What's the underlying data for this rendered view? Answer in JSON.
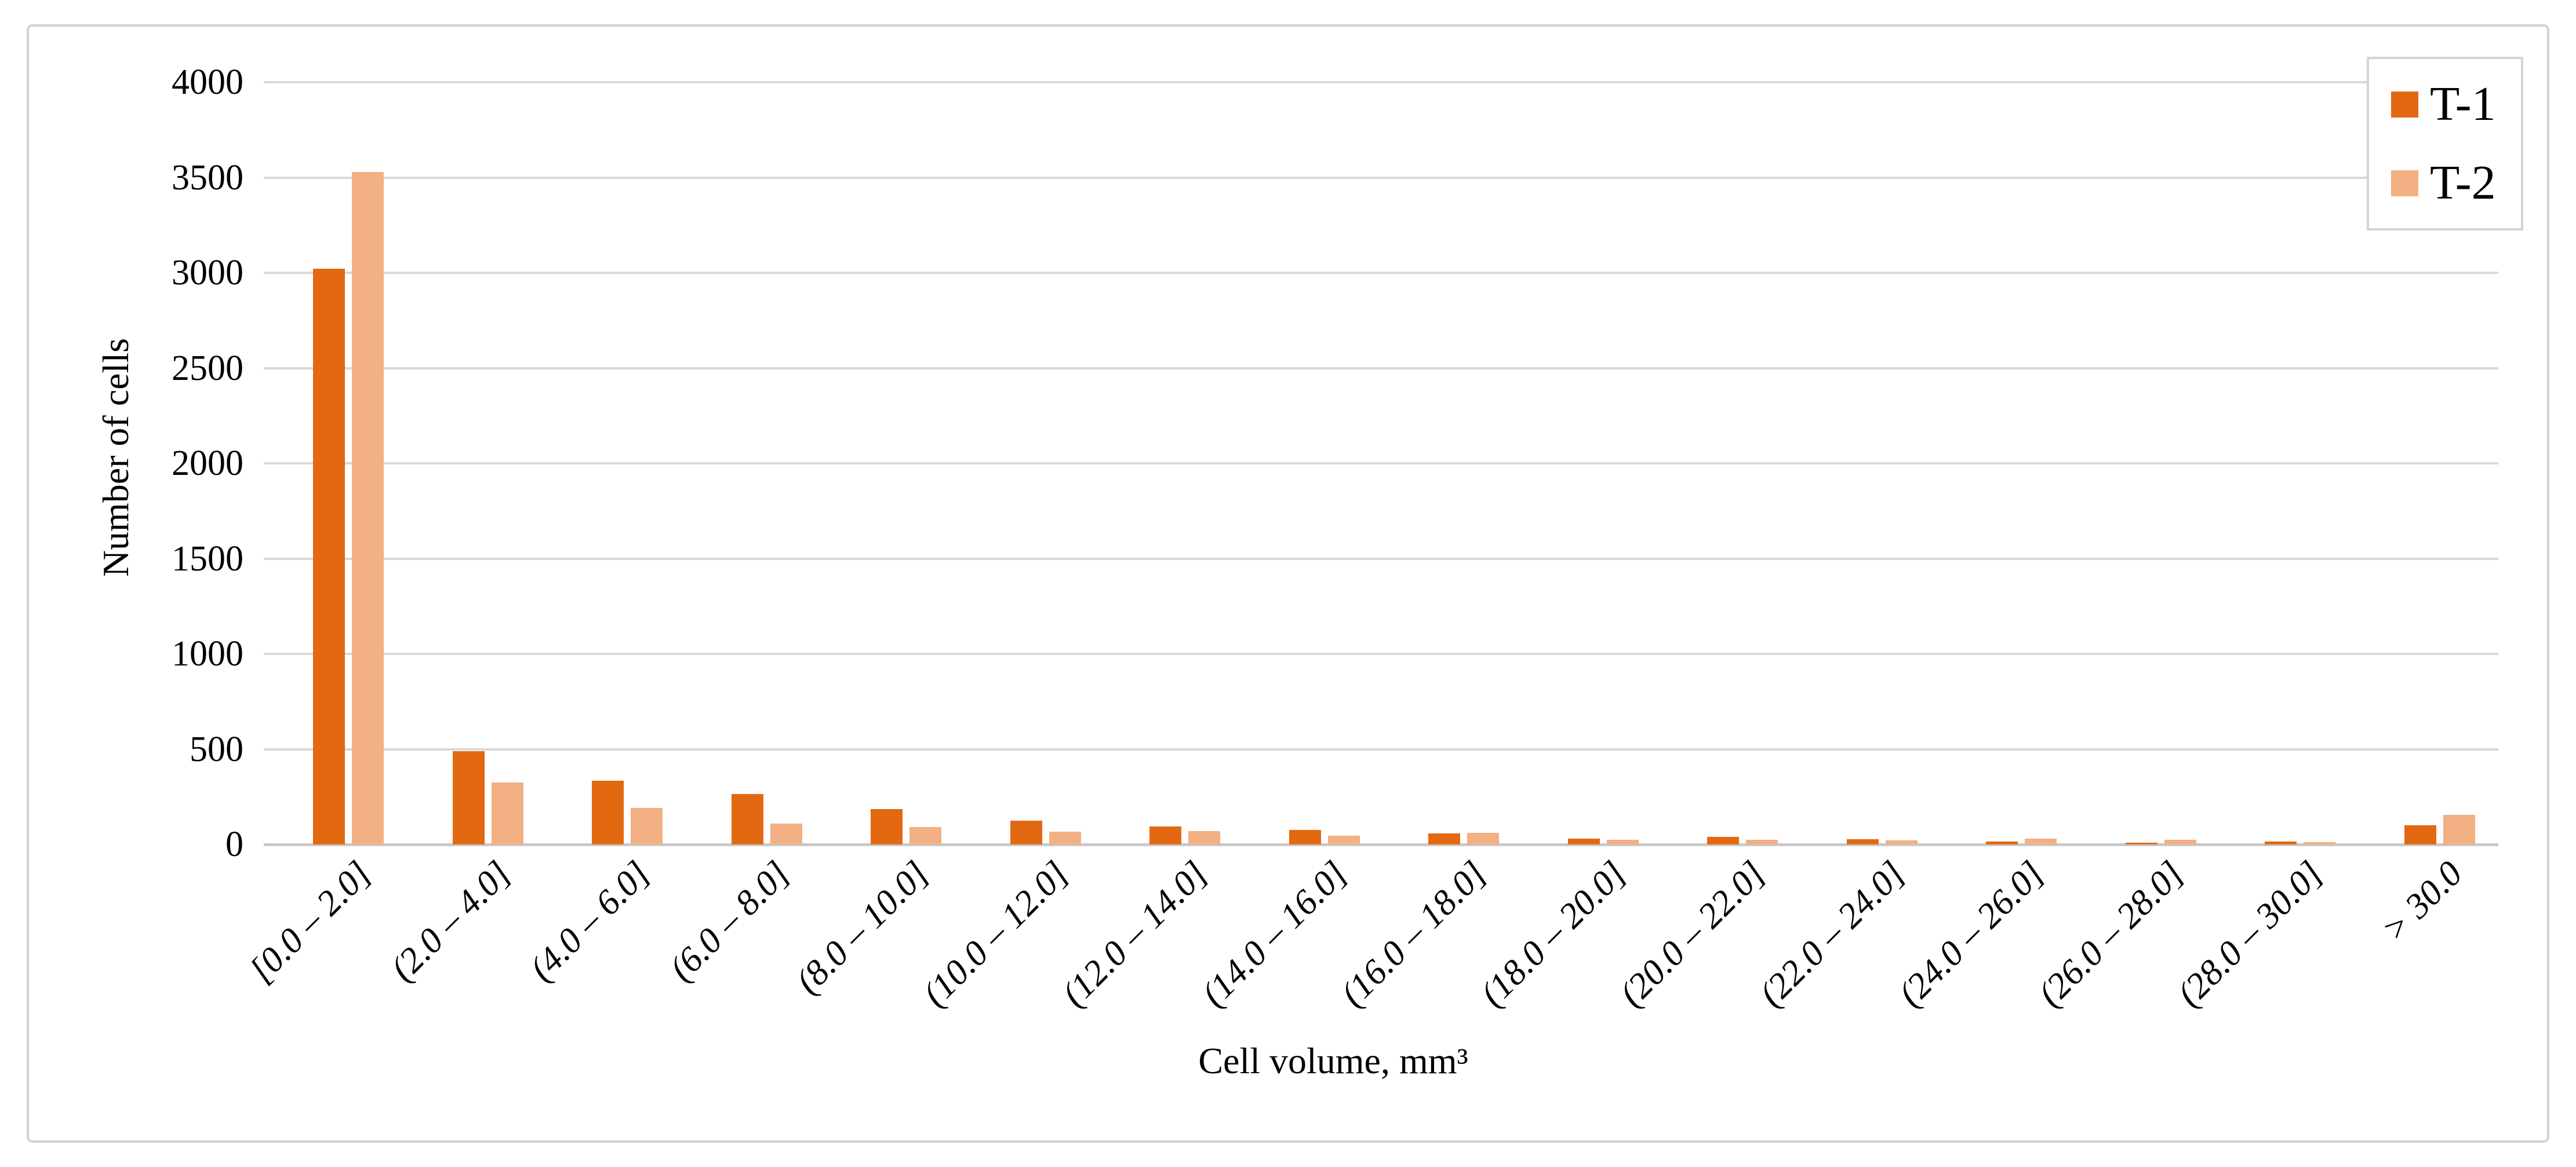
{
  "chart_data": {
    "type": "bar",
    "title": "",
    "xlabel": "Cell volume, mm³",
    "ylabel": "Number of cells",
    "categories": [
      "[0.0 – 2.0]",
      "(2.0 – 4.0]",
      "(4.0 – 6.0]",
      "(6.0 – 8.0]",
      "(8.0 – 10.0]",
      "(10.0 – 12.0]",
      "(12.0 – 14.0]",
      "(14.0 – 16.0]",
      "(16.0 – 18.0]",
      "(18.0 – 20.0]",
      "(20.0 – 22.0]",
      "(22.0 – 24.0]",
      "(24.0 – 26.0]",
      "(26.0 – 28.0]",
      "(28.0 – 30.0]",
      "> 30.0"
    ],
    "series": [
      {
        "name": "T-1",
        "color": "#e26912",
        "values": [
          3020,
          490,
          335,
          265,
          185,
          125,
          95,
          75,
          58,
          30,
          38,
          28,
          15,
          10,
          15,
          100
        ]
      },
      {
        "name": "T-2",
        "color": "#f2b083",
        "values": [
          3530,
          325,
          190,
          110,
          90,
          68,
          70,
          45,
          62,
          24,
          24,
          20,
          30,
          25,
          13,
          155
        ]
      }
    ],
    "ylim": [
      0,
      4000
    ],
    "ytick_step": 500,
    "yticks": [
      "0",
      "500",
      "1000",
      "1500",
      "2000",
      "2500",
      "3000",
      "3500",
      "4000"
    ],
    "grid": "horizontal",
    "legend_position": "top-right",
    "bar_orientation": "vertical"
  },
  "colors": {
    "series_t1": "#e26912",
    "series_t2": "#f2b083",
    "gridline": "#d9d9d9",
    "chart_border": "#d2d2d2",
    "text": "#000000",
    "background": "#ffffff"
  }
}
